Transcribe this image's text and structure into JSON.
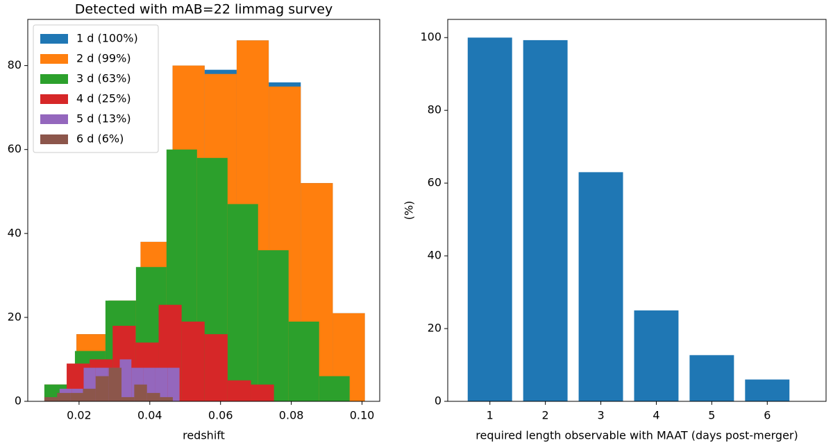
{
  "chart_data": [
    {
      "type": "histogram",
      "title": "Detected with mAB=22 limmag survey",
      "xlabel": "redshift",
      "xlim": [
        0.0055,
        0.105
      ],
      "ylim": [
        0,
        91
      ],
      "xticks": [
        0.02,
        0.04,
        0.06,
        0.08,
        {
          "value": 0.1,
          "label": "0.10"
        }
      ],
      "yticks": [
        0,
        20,
        40,
        60,
        80
      ],
      "legend": "upper left",
      "series": [
        {
          "name": "1 d (100%)",
          "color": "#1f77b4",
          "bins": [
            0.0102,
            0.01926,
            0.02832,
            0.03738,
            0.04644,
            0.0555,
            0.06456,
            0.07362,
            0.08268,
            0.09174,
            0.1008
          ],
          "values": [
            4,
            16,
            24,
            38,
            80,
            79,
            86,
            76,
            52,
            21
          ]
        },
        {
          "name": "2 d (99%)",
          "color": "#ff7f0e",
          "bins": [
            0.0102,
            0.01926,
            0.02832,
            0.03738,
            0.04644,
            0.0555,
            0.06456,
            0.07362,
            0.08268,
            0.09174,
            0.1008
          ],
          "values": [
            4,
            16,
            24,
            38,
            80,
            78,
            86,
            75,
            52,
            21
          ]
        },
        {
          "name": "3 d (63%)",
          "color": "#2ca02c",
          "bins": [
            0.0102,
            0.01883,
            0.02746,
            0.03609,
            0.04472,
            0.05335,
            0.06198,
            0.07061,
            0.07924,
            0.08787,
            0.0965
          ],
          "values": [
            4,
            12,
            24,
            32,
            60,
            58,
            47,
            36,
            19,
            6
          ]
        },
        {
          "name": "4 d (25%)",
          "color": "#d62728",
          "bins": [
            0.0165,
            0.023,
            0.0295,
            0.036,
            0.0425,
            0.049,
            0.0555,
            0.062,
            0.0686,
            0.0751
          ],
          "values": [
            9,
            10,
            18,
            14,
            23,
            19,
            16,
            5,
            4
          ]
        },
        {
          "name": "5 d (13%)",
          "color": "#9467bd",
          "bins": [
            0.0145,
            0.0179,
            0.0213,
            0.0247,
            0.0281,
            0.0315,
            0.0348,
            0.0382,
            0.0416,
            0.045,
            0.0484
          ],
          "values": [
            3,
            3,
            8,
            8,
            8,
            10,
            8,
            8,
            8,
            8
          ]
        },
        {
          "name": "6 d (6%)",
          "color": "#8c564b",
          "bins": [
            0.0102,
            0.0138,
            0.0175,
            0.0211,
            0.0247,
            0.0284,
            0.032,
            0.0356,
            0.0392,
            0.0429,
            0.0465
          ],
          "values": [
            1,
            2,
            2,
            3,
            6,
            8,
            1,
            4,
            2,
            1
          ]
        }
      ]
    },
    {
      "type": "bar",
      "xlabel": "required length observable with MAAT (days post-merger)",
      "ylabel": "(%)",
      "x": [
        1,
        2,
        3,
        4,
        5,
        6
      ],
      "values": [
        100,
        99.3,
        63,
        25,
        12.7,
        6
      ],
      "color": "#1f77b4",
      "xlim": [
        0.24,
        7.06
      ],
      "ylim": [
        0,
        105
      ],
      "xticks": [
        1,
        2,
        3,
        4,
        5,
        6
      ],
      "yticks": [
        0,
        20,
        40,
        60,
        80,
        100
      ]
    }
  ]
}
